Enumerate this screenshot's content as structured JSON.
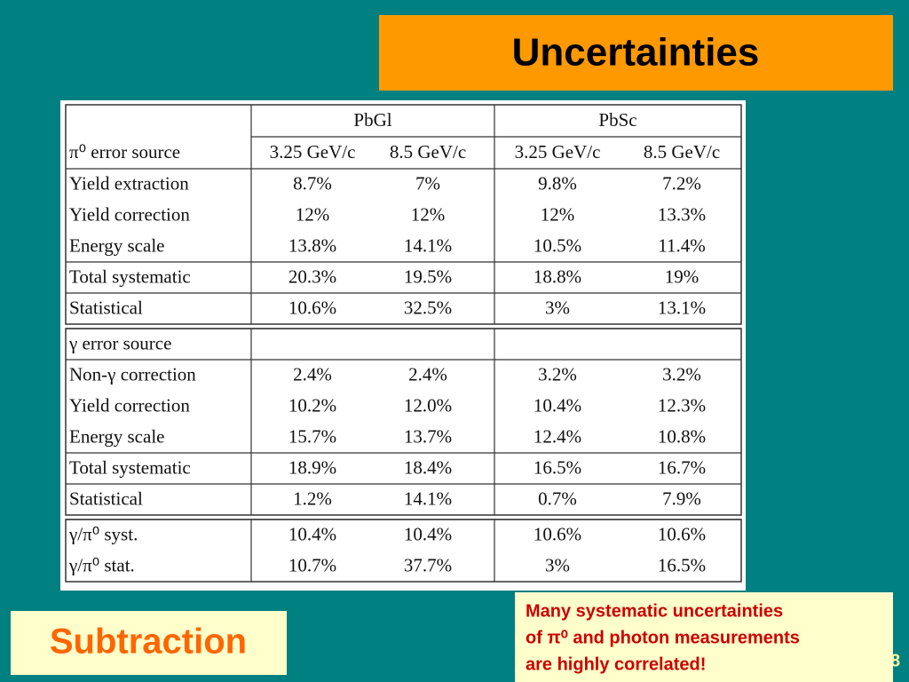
{
  "title": "Uncertainties",
  "table": {
    "group_headers": [
      "PbGl",
      "PbSc"
    ],
    "column_headers": [
      "π⁰ error source",
      "3.25 GeV/c",
      "8.5 GeV/c",
      "3.25 GeV/c",
      "8.5 GeV/c"
    ],
    "blocks": [
      [
        [
          "Yield extraction",
          "8.7%",
          "7%",
          "9.8%",
          "7.2%"
        ],
        [
          "Yield correction",
          "12%",
          "12%",
          "12%",
          "13.3%"
        ],
        [
          "Energy scale",
          "13.8%",
          "14.1%",
          "10.5%",
          "11.4%"
        ]
      ],
      [
        [
          "Total systematic",
          "20.3%",
          "19.5%",
          "18.8%",
          "19%"
        ]
      ],
      [
        [
          "Statistical",
          "10.6%",
          "32.5%",
          "3%",
          "13.1%"
        ]
      ],
      [
        [
          "γ error source"
        ]
      ],
      [
        [
          "Non-γ correction",
          "2.4%",
          "2.4%",
          "3.2%",
          "3.2%"
        ],
        [
          "Yield correction",
          "10.2%",
          "12.0%",
          "10.4%",
          "12.3%"
        ],
        [
          "Energy scale",
          "15.7%",
          "13.7%",
          "12.4%",
          "10.8%"
        ]
      ],
      [
        [
          "Total systematic",
          "18.9%",
          "18.4%",
          "16.5%",
          "16.7%"
        ]
      ],
      [
        [
          "Statistical",
          "1.2%",
          "14.1%",
          "0.7%",
          "7.9%"
        ]
      ],
      [
        [
          "γ/π⁰  syst.",
          "10.4%",
          "10.4%",
          "10.6%",
          "10.6%"
        ],
        [
          "γ/π⁰  stat.",
          "10.7%",
          "37.7%",
          "3%",
          "16.5%"
        ]
      ]
    ]
  },
  "subtitle_box": "Subtraction",
  "note": [
    "Many systematic uncertainties",
    "of π⁰ and photon measurements",
    "are highly correlated!"
  ],
  "page_number": "8"
}
